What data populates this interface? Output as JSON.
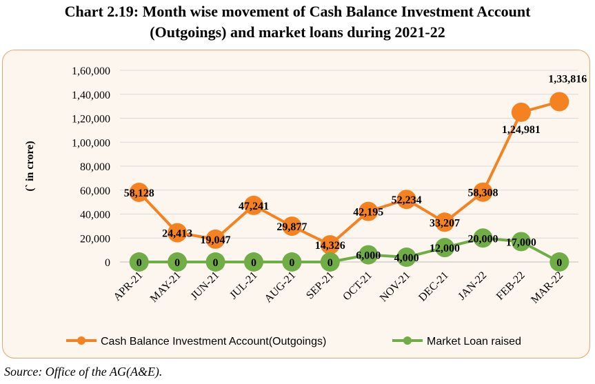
{
  "title_line1": "Chart 2.19: Month wise movement of Cash Balance Investment Account",
  "title_line2": "(Outgoings) and market loans during 2021-22",
  "source": "Source: Office of the AG(A&E).",
  "chart_data": {
    "type": "line",
    "ylabel": "(` in crore)",
    "ylim": [
      0,
      160000
    ],
    "yticks": [
      0,
      20000,
      40000,
      60000,
      80000,
      100000,
      120000,
      140000,
      160000
    ],
    "ytick_labels": [
      "0",
      "20,000",
      "40,000",
      "60,000",
      "80,000",
      "1,00,000",
      "1,20,000",
      "1,40,000",
      "1,60,000"
    ],
    "grid": "horizontal",
    "legend_position": "bottom",
    "categories": [
      "APR-21",
      "MAY-21",
      "JUN-21",
      "JUL-21",
      "AUG-21",
      "SEP-21",
      "OCT-21",
      "NOV-21",
      "DEC-21",
      "JAN-22",
      "FEB-22",
      "MAR-22"
    ],
    "series": [
      {
        "name": "Cash Balance Investment Account(Outgoings)",
        "color": "#F58220",
        "values": [
          58128,
          24413,
          19047,
          47241,
          29877,
          14326,
          42195,
          52234,
          33207,
          58308,
          124981,
          133816
        ],
        "labels": [
          "58,128",
          "24,413",
          "19,047",
          "47,241",
          "29,877",
          "14,326",
          "42,195",
          "52,234",
          "33,207",
          "58,308",
          "1,24,981",
          "1,33,816"
        ]
      },
      {
        "name": "Market Loan raised",
        "color": "#70AD47",
        "values": [
          0,
          0,
          0,
          0,
          0,
          0,
          6000,
          4000,
          12000,
          20000,
          17000,
          0
        ],
        "labels": [
          "0",
          "0",
          "0",
          "0",
          "0",
          "0",
          "6,000",
          "4,000",
          "12,000",
          "20,000",
          "17,000",
          "0"
        ]
      }
    ]
  }
}
